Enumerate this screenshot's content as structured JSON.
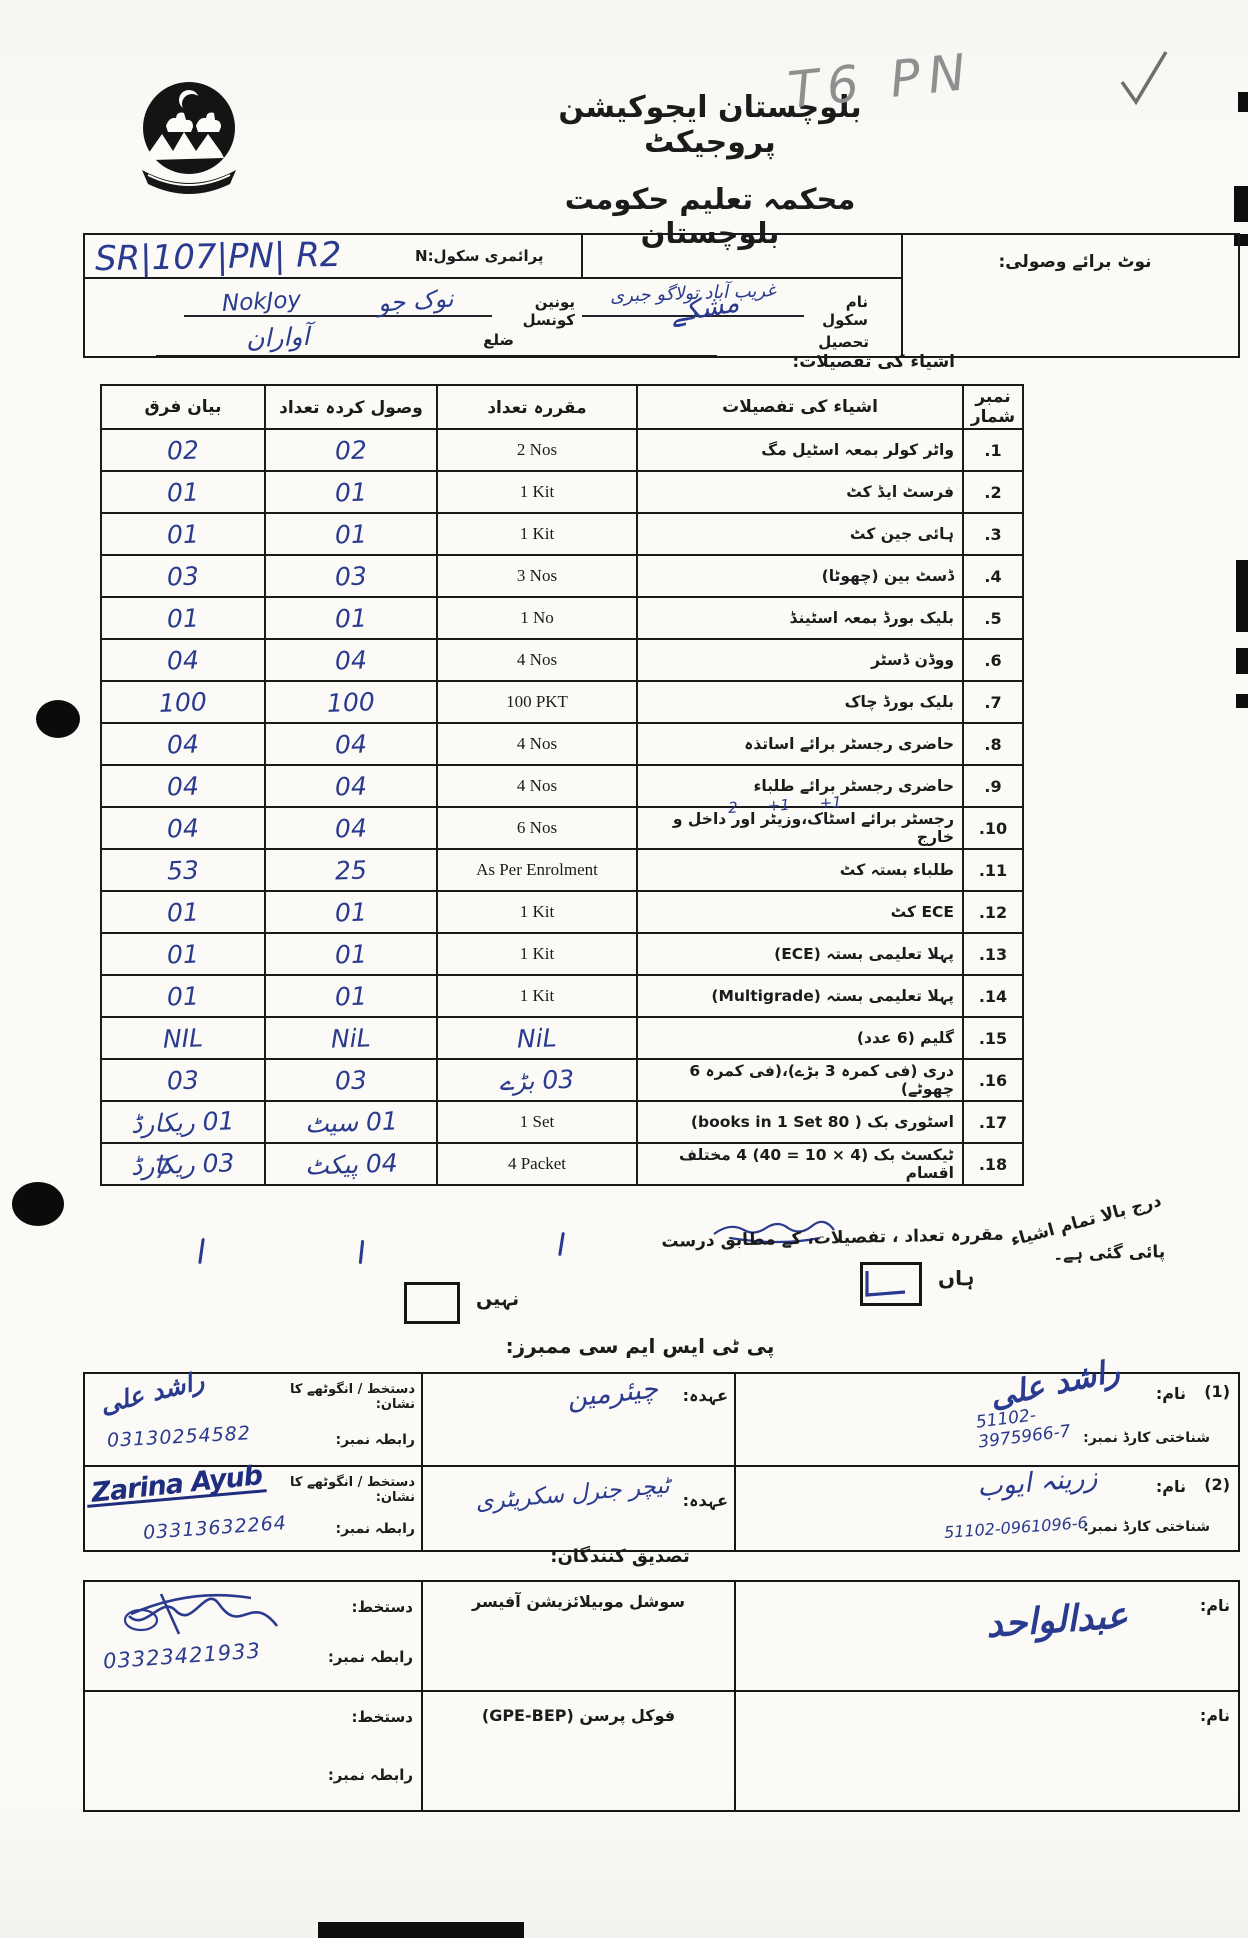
{
  "page": {
    "pencil_note": "T6 PN"
  },
  "header": {
    "title": "بلوچستان ایجوکیشن پروجیکٹ",
    "subtitle": "محکمہ تعلیم حکومت بلوچستان",
    "logo": "government-of-balochistan-seal"
  },
  "info": {
    "note_label": "نوٹ برائے وصولی:",
    "primary_school_label": "پرائمری سکول:N",
    "school_code": "SR|107|PN| R2",
    "school_name_label": "نام سکول",
    "school_name": "غریب آباد تولاگو جبری",
    "union_council_label": "یونین کونسل",
    "union_council": "نوک جو",
    "union_council_latin": "NokJoy",
    "tehsil_label": "تحصیل",
    "tehsil": "مشکے",
    "district_label": "ضلع",
    "district": "آواران"
  },
  "items_section": {
    "heading": "اشیاء کی تفصیلات:",
    "columns": {
      "serial": "نمبر شمار",
      "description": "اشیاء کی تفصیلات",
      "prescribed": "مقررہ تعداد",
      "received": "وصول کردہ تعداد",
      "difference": "بیان فرق"
    },
    "rows": [
      {
        "serial": "1.",
        "description": "واٹر کولر بمعہ اسٹیل مگ",
        "prescribed": "2 Nos",
        "received": "02",
        "difference": "02"
      },
      {
        "serial": "2.",
        "description": "فرسٹ ایڈ کٹ",
        "prescribed": "1 Kit",
        "received": "01",
        "difference": "01"
      },
      {
        "serial": "3.",
        "description": "ہائی جین کٹ",
        "prescribed": "1 Kit",
        "received": "01",
        "difference": "01"
      },
      {
        "serial": "4.",
        "description": "ڈسٹ بین (چھوٹا)",
        "prescribed": "3 Nos",
        "received": "03",
        "difference": "03"
      },
      {
        "serial": "5.",
        "description": "بلیک بورڈ بمعہ اسٹینڈ",
        "prescribed": "1 No",
        "received": "01",
        "difference": "01"
      },
      {
        "serial": "6.",
        "description": "ووڈن ڈسٹر",
        "prescribed": "4 Nos",
        "received": "04",
        "difference": "04"
      },
      {
        "serial": "7.",
        "description": "بلیک بورڈ چاک",
        "prescribed": "100 PKT",
        "received": "100",
        "difference": "100"
      },
      {
        "serial": "8.",
        "description": "حاضری رجسٹر برائے اساتذہ",
        "prescribed": "4 Nos",
        "received": "04",
        "difference": "04"
      },
      {
        "serial": "9.",
        "description": "حاضری رجسٹر برائے طلباء",
        "prescribed": "4 Nos",
        "received": "04",
        "difference": "04"
      },
      {
        "serial": "10.",
        "description": "رجسٹر برائے اسٹاک،وزیٹر اور داخل و خارج",
        "prescribed": "6 Nos",
        "received": "04",
        "difference": "04",
        "hand_marks": [
          "2",
          "+1",
          "+1"
        ]
      },
      {
        "serial": "11.",
        "description": "طلباء بستہ کٹ",
        "prescribed": "As Per Enrolment",
        "received": "25",
        "difference": "53"
      },
      {
        "serial": "12.",
        "description": "ECE کٹ",
        "prescribed": "1 Kit",
        "received": "01",
        "difference": "01"
      },
      {
        "serial": "13.",
        "description": "پہلا تعلیمی بستہ (ECE)",
        "prescribed": "1 Kit",
        "received": "01",
        "difference": "01"
      },
      {
        "serial": "14.",
        "description": "پہلا تعلیمی بستہ (Multigrade)",
        "prescribed": "1 Kit",
        "received": "01",
        "difference": "01"
      },
      {
        "serial": "15.",
        "description": "گلیم (6 عدد)",
        "prescribed": "NiL",
        "prescribed_hw": true,
        "received": "NiL",
        "difference": "NIL"
      },
      {
        "serial": "16.",
        "description": "دری (فی کمرہ 3 بڑے)،(فی کمرہ 6 چھوٹے)",
        "prescribed": "03 بڑے",
        "prescribed_hw": true,
        "received": "03",
        "difference": "03"
      },
      {
        "serial": "17.",
        "description": "اسٹوری بک ( 80 books in 1 Set)",
        "prescribed": "1 Set",
        "received": "01 سیٹ",
        "difference": "01 ریکارڈ"
      },
      {
        "serial": "18.",
        "description": "ٹیکسٹ بک (4 × 10 = 40) 4 مختلف اقسام",
        "prescribed": "4 Packet",
        "received": "04 پیکٹ",
        "difference": "03 ریکارڈ",
        "overstrike": "7"
      }
    ]
  },
  "verification": {
    "statement_start": "درج بالا تمام اشیاء",
    "statement_rest": "مقررہ تعداد ، تفصیلات، کے مطابق درست پائی گئی ہے۔",
    "yes_label": "ہاں",
    "no_label": "نہیں",
    "yes_checked": true
  },
  "ptsmc": {
    "heading": "پی ٹی ایس ایم سی ممبرز:",
    "labels": {
      "name": "نام:",
      "cnic": "شناختی کارڈ نمبر:",
      "designation": "عہدہ:",
      "signature": "دستخط / انگوٹھے کا نشان:",
      "phone": "رابطہ نمبر:"
    },
    "members": [
      {
        "index": "(1)",
        "name": "راشد علی",
        "cnic": "51102-\n3975966-7",
        "designation": "چیئرمین",
        "signature": "راشد علی",
        "phone": "03130254582"
      },
      {
        "index": "(2)",
        "name": "زرینہ ایوب",
        "cnic": "51102-0961096-6",
        "designation": "ٹیچر جنرل سکریٹری",
        "signature": "Zarina Ayub",
        "phone": "03313632264"
      }
    ]
  },
  "certifiers": {
    "heading": "تصدیق کنندگان:",
    "name_label": "نام:",
    "signature_label": "دستخط:",
    "phone_label": "رابطہ نمبر:",
    "rows": [
      {
        "name": "عبدالواحد",
        "role": "سوشل موبیلائزیشن آفیسر",
        "phone": "03323421933"
      },
      {
        "name": "",
        "role": "فوکل پرسن (GPE-BEP)",
        "phone": ""
      }
    ]
  }
}
